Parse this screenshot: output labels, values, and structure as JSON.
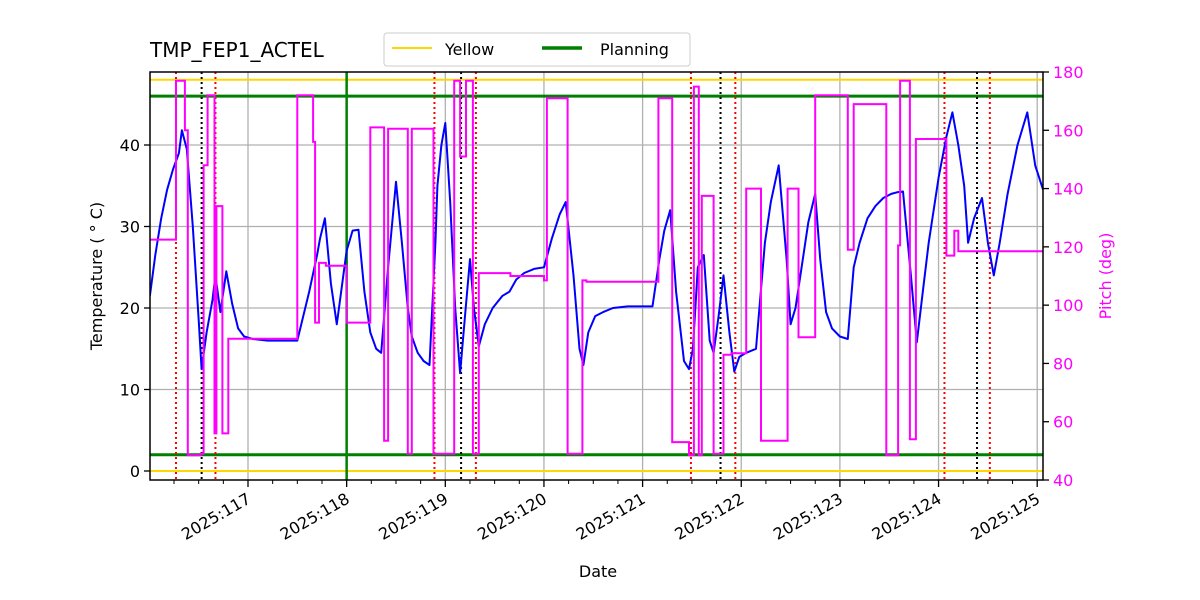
{
  "chart_data": {
    "type": "line",
    "title": "TMP_FEP1_ACTEL",
    "xlabel": "Date",
    "ylabel": "Temperature ($^\\circ$C)",
    "ylabel_display": "Temperature ( ° C)",
    "y2label": "Pitch (deg)",
    "xlim": [
      116.006,
      125.06
    ],
    "ylim": [
      -1.1,
      48.9
    ],
    "y2lim": [
      40,
      180
    ],
    "x_ticks": [
      117,
      118,
      119,
      120,
      121,
      122,
      123,
      124,
      125
    ],
    "x_tick_labels": [
      "2025:117",
      "2025:118",
      "2025:119",
      "2025:120",
      "2025:121",
      "2025:122",
      "2025:123",
      "2025:124",
      "2025:125"
    ],
    "y_ticks": [
      0,
      10,
      20,
      30,
      40
    ],
    "y2_ticks": [
      40,
      60,
      80,
      100,
      120,
      140,
      160,
      180
    ],
    "grid": true,
    "legend": {
      "position": "upper center (outside top)",
      "entries": [
        {
          "label": "Yellow",
          "color": "#FFD700"
        },
        {
          "label": "Planning",
          "color": "#008000"
        }
      ]
    },
    "limits": {
      "yellow": [
        0,
        48
      ],
      "planning": [
        2,
        46
      ]
    },
    "planning_vertical_line_day": 118.0,
    "red_dotted_lines_days": [
      116.27,
      116.67,
      118.89,
      119.31,
      121.49,
      121.94,
      124.06,
      124.52
    ],
    "black_dotted_lines_days": [
      116.53,
      119.16,
      121.79,
      124.39
    ],
    "colors": {
      "temperature": "#0000FF",
      "pitch": "#FF00FF",
      "yellow": "#FFD700",
      "planning": "#008000",
      "red_markers": "#FF0000",
      "black_markers": "#000000",
      "grid": "#B0B0B0"
    },
    "series": [
      {
        "name": "Temperature",
        "axis": "left",
        "color": "#0000FF",
        "x": [
          116.006,
          116.06,
          116.12,
          116.18,
          116.24,
          116.3,
          116.33,
          116.38,
          116.44,
          116.5,
          116.53,
          116.58,
          116.64,
          116.67,
          116.72,
          116.78,
          116.84,
          116.9,
          116.96,
          117.05,
          117.2,
          117.5,
          117.62,
          117.7,
          117.73,
          117.78,
          117.84,
          117.9,
          118.0,
          118.06,
          118.12,
          118.18,
          118.24,
          118.3,
          118.35,
          118.42,
          118.5,
          118.56,
          118.62,
          118.66,
          118.72,
          118.78,
          118.84,
          118.9,
          118.92,
          118.96,
          119.0,
          119.05,
          119.1,
          119.15,
          119.2,
          119.25,
          119.29,
          119.34,
          119.4,
          119.48,
          119.58,
          119.65,
          119.72,
          119.8,
          119.9,
          120.0,
          120.08,
          120.16,
          120.22,
          120.3,
          120.36,
          120.4,
          120.45,
          120.52,
          120.6,
          120.7,
          120.85,
          121.0,
          121.1,
          121.17,
          121.22,
          121.28,
          121.34,
          121.42,
          121.47,
          121.51,
          121.56,
          121.62,
          121.68,
          121.72,
          121.77,
          121.82,
          121.88,
          121.93,
          121.98,
          122.05,
          122.15,
          122.24,
          122.3,
          122.38,
          122.46,
          122.5,
          122.55,
          122.6,
          122.68,
          122.75,
          122.8,
          122.86,
          122.92,
          123.0,
          123.08,
          123.14,
          123.2,
          123.28,
          123.36,
          123.44,
          123.52,
          123.58,
          123.64,
          123.72,
          123.78,
          123.84,
          123.9,
          124.0,
          124.08,
          124.14,
          124.2,
          124.26,
          124.3,
          124.36,
          124.44,
          124.5,
          124.56,
          124.62,
          124.7,
          124.8,
          124.9,
          124.98,
          125.06
        ],
        "values": [
          21.5,
          26.5,
          31.0,
          34.5,
          37.0,
          39.0,
          41.8,
          39.5,
          30.0,
          18.5,
          12.5,
          17.0,
          21.0,
          24.0,
          19.5,
          24.5,
          20.5,
          17.5,
          16.5,
          16.2,
          16.0,
          16.0,
          22.0,
          26.5,
          28.5,
          31.0,
          23.0,
          18.0,
          27.0,
          29.5,
          29.6,
          22.0,
          17.0,
          15.0,
          14.5,
          25.0,
          35.5,
          28.0,
          20.0,
          16.5,
          14.5,
          13.5,
          13.0,
          28.0,
          35.0,
          40.0,
          42.7,
          33.0,
          20.0,
          12.0,
          19.0,
          26.0,
          20.0,
          15.3,
          18.0,
          20.0,
          21.5,
          22.0,
          23.5,
          24.3,
          24.8,
          25.0,
          28.5,
          31.5,
          33.0,
          24.0,
          15.0,
          13.0,
          17.0,
          19.0,
          19.5,
          20.0,
          20.2,
          20.2,
          20.2,
          26.0,
          29.5,
          32.0,
          22.0,
          13.5,
          12.5,
          15.0,
          25.0,
          26.5,
          16.0,
          14.5,
          19.0,
          24.0,
          17.0,
          12.2,
          14.0,
          14.5,
          15.0,
          28.0,
          33.0,
          37.5,
          26.0,
          18.0,
          20.0,
          24.0,
          30.5,
          34.0,
          26.0,
          19.5,
          17.5,
          16.5,
          16.2,
          25.0,
          28.0,
          31.0,
          32.5,
          33.5,
          34.0,
          34.2,
          34.3,
          24.0,
          15.8,
          22.0,
          28.0,
          36.0,
          41.0,
          44.0,
          40.0,
          35.0,
          28.0,
          31.0,
          33.5,
          28.0,
          24.0,
          28.0,
          34.0,
          40.0,
          44.0,
          37.5,
          34.5
        ]
      },
      {
        "name": "Pitch",
        "axis": "right",
        "color": "#FF00FF",
        "x": [
          116.006,
          116.27,
          116.27,
          116.36,
          116.36,
          116.39,
          116.39,
          116.52,
          116.52,
          116.55,
          116.55,
          116.59,
          116.59,
          116.66,
          116.66,
          116.68,
          116.68,
          116.74,
          116.74,
          116.8,
          116.8,
          116.9,
          116.9,
          116.92,
          116.92,
          117.5,
          117.5,
          117.66,
          117.66,
          117.68,
          117.68,
          117.72,
          117.72,
          117.79,
          117.79,
          118.0,
          118.0,
          118.24,
          118.24,
          118.38,
          118.38,
          118.42,
          118.42,
          118.62,
          118.62,
          118.66,
          118.66,
          118.88,
          118.88,
          119.09,
          119.09,
          119.15,
          119.15,
          119.21,
          119.21,
          119.28,
          119.28,
          119.34,
          119.34,
          119.66,
          119.66,
          120.0,
          120.0,
          120.03,
          120.03,
          120.24,
          120.24,
          120.39,
          120.39,
          120.43,
          120.43,
          121.16,
          121.16,
          121.3,
          121.3,
          121.47,
          121.47,
          121.52,
          121.52,
          121.57,
          121.57,
          121.6,
          121.6,
          121.72,
          121.72,
          121.82,
          121.82,
          121.9,
          121.9,
          122.05,
          122.05,
          122.2,
          122.2,
          122.47,
          122.47,
          122.58,
          122.58,
          122.75,
          122.75,
          123.08,
          123.08,
          123.14,
          123.14,
          123.47,
          123.47,
          123.59,
          123.59,
          123.61,
          123.61,
          123.71,
          123.71,
          123.77,
          123.77,
          124.08,
          124.08,
          124.16,
          124.16,
          124.2,
          124.2,
          124.23,
          124.23,
          124.37,
          124.37,
          124.54,
          124.54,
          124.56,
          124.56,
          124.84,
          124.84,
          125.06
        ],
        "values": [
          122.5,
          122.5,
          177.0,
          177.0,
          160.0,
          160.0,
          48.5,
          48.5,
          49.0,
          49.0,
          148.0,
          148.0,
          172.0,
          172.0,
          56.0,
          56.0,
          134.0,
          134.0,
          56.0,
          56.0,
          88.5,
          88.5,
          88.5,
          88.5,
          88.5,
          88.5,
          172.0,
          172.0,
          156.0,
          156.0,
          94.0,
          94.0,
          114.5,
          114.5,
          113.5,
          113.5,
          94.0,
          94.0,
          161.0,
          161.0,
          53.5,
          53.5,
          160.5,
          160.5,
          49.0,
          49.0,
          160.5,
          160.5,
          49.0,
          49.0,
          177.0,
          177.0,
          151.0,
          151.0,
          177.0,
          177.0,
          49.0,
          49.0,
          111.0,
          111.0,
          110.0,
          110.0,
          108.5,
          108.5,
          171.0,
          171.0,
          49.0,
          49.0,
          108.5,
          108.5,
          108.0,
          108.0,
          171.0,
          171.0,
          53.0,
          53.0,
          48.5,
          48.5,
          175.0,
          175.0,
          48.5,
          48.5,
          137.5,
          137.5,
          49.0,
          49.0,
          83.0,
          83.0,
          83.5,
          83.5,
          140.0,
          140.0,
          53.5,
          53.5,
          140.0,
          140.0,
          89.0,
          89.0,
          172.0,
          172.0,
          119.0,
          119.0,
          169.0,
          169.0,
          48.5,
          48.5,
          120.5,
          120.5,
          177.0,
          177.0,
          54.0,
          54.0,
          157.0,
          157.0,
          117.0,
          117.0,
          125.5,
          125.5,
          118.5,
          118.5,
          118.5,
          118.5,
          118.5,
          118.5,
          118.5,
          118.5,
          118.5,
          118.5,
          118.5,
          118.5
        ]
      }
    ]
  }
}
